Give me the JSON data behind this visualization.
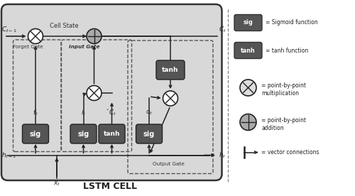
{
  "fig_width": 5.0,
  "fig_height": 2.76,
  "dpi": 100,
  "title": "LSTM CELL",
  "dark_box_color": "#555555",
  "light_gray": "#d8d8d8",
  "white": "#ffffff",
  "outer_edge": "#444444",
  "separator_color": "#888888",
  "text_color": "#222222",
  "legend_sig_desc": "= Sigmoid function",
  "legend_tanh_desc": "= tanh function",
  "legend_otimes_desc1": "= point-by-point",
  "legend_otimes_desc2": "multiplication",
  "legend_oplus_desc1": "= point-by-point",
  "legend_oplus_desc2": "addition",
  "legend_arrow_desc": "= vector connections",
  "cell_state_label": "Cell State",
  "forget_gate_label": "Forget Gate",
  "input_gate_label": "Input Gate",
  "output_gate_label": "Output Gate"
}
